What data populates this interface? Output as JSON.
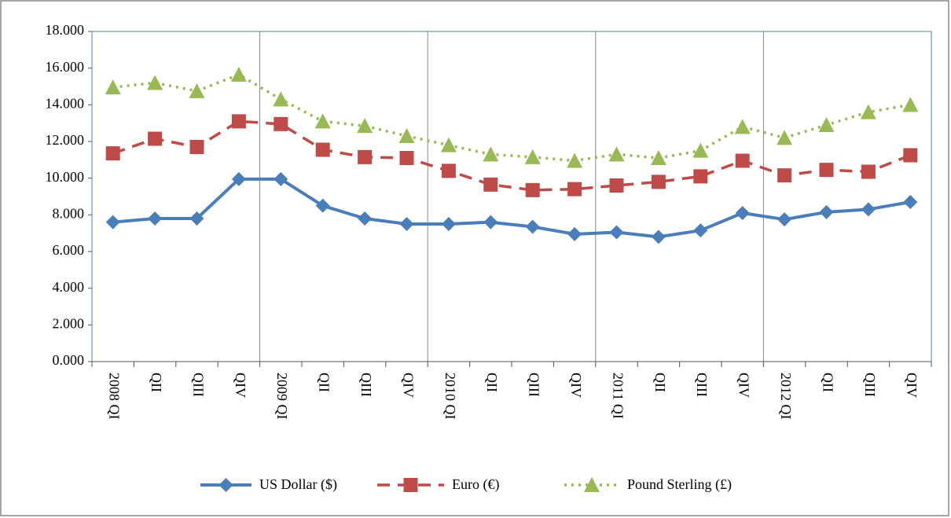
{
  "chart_data": {
    "type": "line",
    "categories": [
      "2008 QI",
      "QII",
      "QIII",
      "QIV",
      "2009 QI",
      "QII",
      "QIII",
      "QIV",
      "2010 QI",
      "QII",
      "QIII",
      "QIV",
      "2011 QI",
      "QII",
      "QIII",
      "QIV",
      "2012 QI",
      "QII",
      "QIII",
      "QIV"
    ],
    "series": [
      {
        "name": "US Dollar ($)",
        "color": "#4a7ebb",
        "dash": "solid",
        "marker": "diamond",
        "values": [
          7600,
          7800,
          7800,
          9950,
          9950,
          8500,
          7800,
          7500,
          7500,
          7600,
          7350,
          6950,
          7050,
          6800,
          7150,
          8100,
          7750,
          8150,
          8300,
          8700
        ]
      },
      {
        "name": "Euro (€)",
        "color": "#be4b48",
        "dash": "dashed",
        "marker": "square",
        "values": [
          11350,
          12150,
          11700,
          13100,
          12950,
          11550,
          11150,
          11100,
          10400,
          9650,
          9350,
          9400,
          9600,
          9800,
          10100,
          10950,
          10150,
          10450,
          10350,
          11250
        ]
      },
      {
        "name": "Pound Sterling (£)",
        "color": "#98b954",
        "dash": "dotted",
        "marker": "triangle",
        "values": [
          14950,
          15200,
          14750,
          15650,
          14300,
          13100,
          12850,
          12300,
          11800,
          11300,
          11150,
          10950,
          11300,
          11100,
          11500,
          12800,
          12200,
          12900,
          13600,
          14000
        ]
      }
    ],
    "ylim": [
      0,
      18000
    ],
    "yticks": [
      {
        "value": 0,
        "label": "0.000"
      },
      {
        "value": 2000,
        "label": "2.000"
      },
      {
        "value": 4000,
        "label": "4.000"
      },
      {
        "value": 6000,
        "label": "6.000"
      },
      {
        "value": 8000,
        "label": "8.000"
      },
      {
        "value": 10000,
        "label": "10.000"
      },
      {
        "value": 12000,
        "label": "12.000"
      },
      {
        "value": 14000,
        "label": "14.000"
      },
      {
        "value": 16000,
        "label": "16.000"
      },
      {
        "value": 18000,
        "label": "18.000"
      }
    ],
    "legend": "bottom"
  }
}
